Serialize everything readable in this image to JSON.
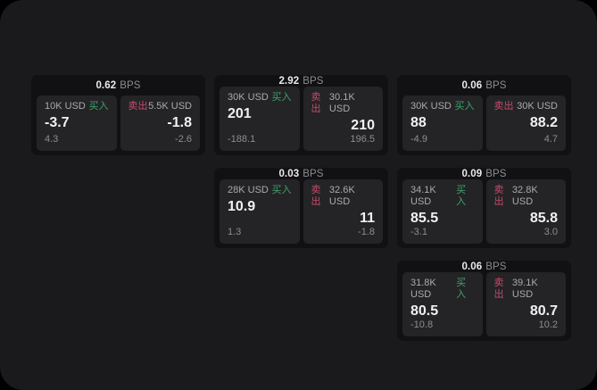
{
  "labels": {
    "bps": "BPS",
    "buy": "买入",
    "sell": "卖出"
  },
  "colors": {
    "background": "#000000",
    "panel": "#1a1a1c",
    "card": "#111113",
    "subpanel": "#242426",
    "buy_green": "#3fa26b",
    "sell_red": "#c8496b",
    "text_primary": "#f1f1f4",
    "text_secondary": "#8d8d92"
  },
  "cards": [
    {
      "bps_value": "0.62",
      "buy": {
        "amount": "10K USD",
        "price": "-3.7",
        "delta": "4.3"
      },
      "sell": {
        "amount": "5.5K USD",
        "price": "-1.8",
        "delta": "-2.6"
      }
    },
    {
      "bps_value": "2.92",
      "buy": {
        "amount": "30K USD",
        "price": "201",
        "delta": "-188.1"
      },
      "sell": {
        "amount": "30.1K USD",
        "price": "210",
        "delta": "196.5"
      }
    },
    {
      "bps_value": "0.06",
      "buy": {
        "amount": "30K USD",
        "price": "88",
        "delta": "-4.9"
      },
      "sell": {
        "amount": "30K USD",
        "price": "88.2",
        "delta": "4.7"
      }
    },
    {
      "bps_value": "0.03",
      "buy": {
        "amount": "28K USD",
        "price": "10.9",
        "delta": "1.3"
      },
      "sell": {
        "amount": "32.6K USD",
        "price": "11",
        "delta": "-1.8"
      }
    },
    {
      "bps_value": "0.09",
      "buy": {
        "amount": "34.1K USD",
        "price": "85.5",
        "delta": "-3.1"
      },
      "sell": {
        "amount": "32.8K USD",
        "price": "85.8",
        "delta": "3.0"
      }
    },
    {
      "bps_value": "0.06",
      "buy": {
        "amount": "31.8K USD",
        "price": "80.5",
        "delta": "-10.8"
      },
      "sell": {
        "amount": "39.1K USD",
        "price": "80.7",
        "delta": "10.2"
      }
    }
  ]
}
